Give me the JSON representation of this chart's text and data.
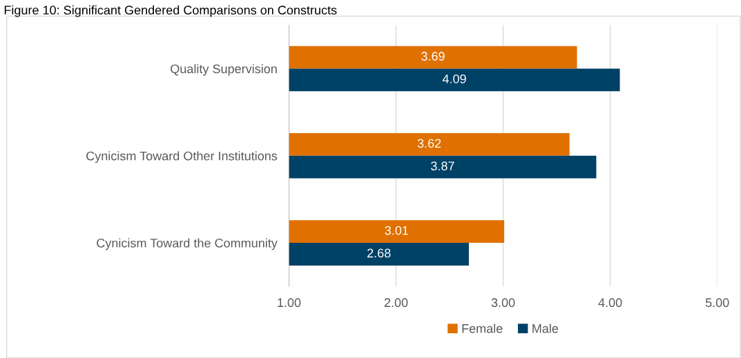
{
  "chart_data": {
    "type": "bar",
    "orientation": "horizontal",
    "title": "Figure 10: Significant Gendered Comparisons on Constructs",
    "categories": [
      "Quality Supervision",
      "Cynicism Toward Other Institutions",
      "Cynicism Toward the Community"
    ],
    "series": [
      {
        "name": "Female",
        "color": "#e07000",
        "values": [
          3.69,
          3.62,
          3.01
        ]
      },
      {
        "name": "Male",
        "color": "#004166",
        "values": [
          4.09,
          3.87,
          2.68
        ]
      }
    ],
    "xlim": [
      1,
      5
    ],
    "xticks": [
      {
        "value": 1,
        "label": "1.00"
      },
      {
        "value": 2,
        "label": "2.00"
      },
      {
        "value": 3,
        "label": "3.00"
      },
      {
        "value": 4,
        "label": "4.00"
      },
      {
        "value": 5,
        "label": "5.00"
      }
    ],
    "grid": "x",
    "legend": "bottom",
    "data_labels": true
  }
}
